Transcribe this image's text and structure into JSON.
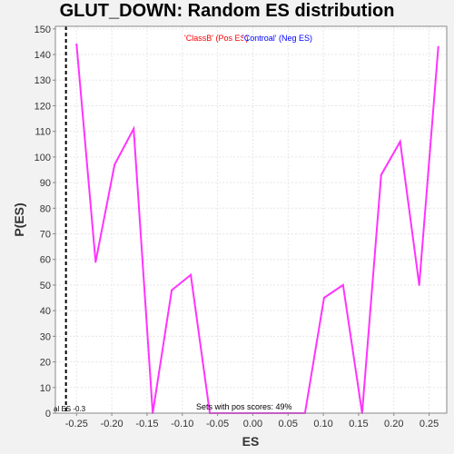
{
  "chart_data": {
    "type": "line",
    "title": "GLUT_DOWN: Random ES distribution",
    "xlabel": "ES",
    "ylabel": "P(ES)",
    "xlim": [
      -0.28,
      0.275
    ],
    "ylim": [
      0,
      151
    ],
    "x_ticks": [
      -0.25,
      -0.2,
      -0.15,
      -0.1,
      -0.05,
      0.0,
      0.05,
      0.1,
      0.15,
      0.2,
      0.25
    ],
    "x_tick_labels": [
      "-0.25",
      "-0.20",
      "-0.15",
      "-0.10",
      "-0.05",
      "0.00",
      "0.05",
      "0.10",
      "0.15",
      "0.20",
      "0.25"
    ],
    "y_ticks": [
      0,
      10,
      20,
      30,
      40,
      50,
      60,
      70,
      80,
      90,
      100,
      110,
      120,
      130,
      140,
      150
    ],
    "y_tick_labels": [
      "0",
      "10",
      "20",
      "30",
      "40",
      "50",
      "60",
      "70",
      "80",
      "90",
      "100",
      "110",
      "120",
      "130",
      "140",
      "150"
    ],
    "grid": true,
    "series": [
      {
        "color": "#ff33ff",
        "x": [
          -0.25,
          -0.223,
          -0.196,
          -0.169,
          -0.142,
          -0.115,
          -0.088,
          -0.061,
          -0.034,
          -0.007,
          0.02,
          0.047,
          0.074,
          0.101,
          0.128,
          0.155,
          0.182,
          0.209,
          0.236,
          0.263
        ],
        "values": [
          144,
          59,
          97,
          111,
          0,
          48,
          54,
          0,
          0,
          0,
          0,
          0,
          0,
          45,
          50,
          0,
          93,
          106,
          50,
          143
        ]
      }
    ],
    "vline": {
      "x": -0.265,
      "color": "#000000",
      "style": "dashed",
      "label": "al ES -0.3"
    },
    "annotations": {
      "legend_pos": "'ClassB' (Pos ES)",
      "legend_neg": "'Controal' (Neg ES)",
      "legend_pos_color": "#ff0000",
      "legend_neg_color": "#0000ff",
      "bottom_text": "Sets with pos scores: 49%"
    }
  }
}
